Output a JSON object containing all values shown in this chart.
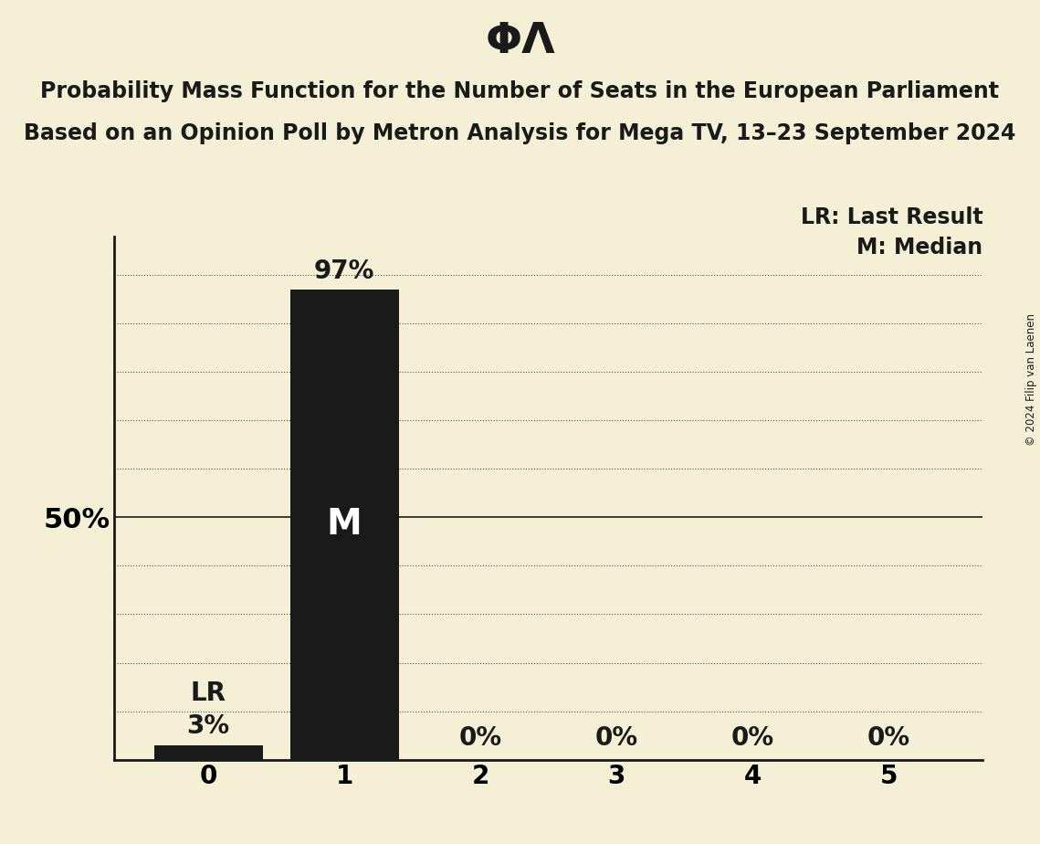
{
  "title": "ΦΛ",
  "subtitle_line1": "Probability Mass Function for the Number of Seats in the European Parliament",
  "subtitle_line2": "Based on an Opinion Poll by Metron Analysis for Mega TV, 13–23 September 2024",
  "categories": [
    0,
    1,
    2,
    3,
    4,
    5
  ],
  "values": [
    0.03,
    0.97,
    0.0,
    0.0,
    0.0,
    0.0
  ],
  "bar_labels": [
    "3%",
    "97%",
    "0%",
    "0%",
    "0%",
    "0%"
  ],
  "bar_color": "#1a1a1a",
  "background_color": "#f5f0d5",
  "median_bar": 1,
  "last_result_bar": 0,
  "legend_lr": "LR: Last Result",
  "legend_m": "M: Median",
  "ylabel_50": "50%",
  "copyright": "© 2024 Filip van Laenen",
  "ylim": [
    0,
    1.08
  ],
  "yticks": [
    0.1,
    0.2,
    0.3,
    0.4,
    0.5,
    0.6,
    0.7,
    0.8,
    0.9,
    1.0
  ],
  "title_fontsize": 34,
  "subtitle_fontsize": 17,
  "bar_label_fontsize": 20,
  "axis_tick_fontsize": 20,
  "legend_fontsize": 17,
  "ylabel_fontsize": 22,
  "M_fontsize": 28
}
